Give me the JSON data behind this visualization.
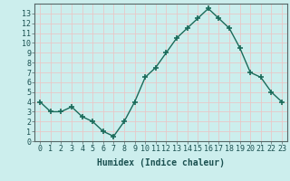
{
  "x": [
    0,
    1,
    2,
    3,
    4,
    5,
    6,
    7,
    8,
    9,
    10,
    11,
    12,
    13,
    14,
    15,
    16,
    17,
    18,
    19,
    20,
    21,
    22,
    23
  ],
  "y": [
    4.0,
    3.0,
    3.0,
    3.5,
    2.5,
    2.0,
    1.0,
    0.5,
    2.0,
    4.0,
    6.5,
    7.5,
    9.0,
    10.5,
    11.5,
    12.5,
    13.5,
    12.5,
    11.5,
    9.5,
    7.0,
    6.5,
    5.0,
    4.0
  ],
  "line_color": "#1a6b5a",
  "marker": "+",
  "marker_size": 4,
  "marker_edge_width": 1.2,
  "bg_color": "#cceeed",
  "grid_color": "#e8c8c8",
  "outer_bg": "#cceeed",
  "xlabel": "Humidex (Indice chaleur)",
  "xlabel_fontsize": 7,
  "xlim": [
    -0.5,
    23.5
  ],
  "ylim": [
    0,
    14
  ],
  "yticks": [
    0,
    1,
    2,
    3,
    4,
    5,
    6,
    7,
    8,
    9,
    10,
    11,
    12,
    13
  ],
  "xticks": [
    0,
    1,
    2,
    3,
    4,
    5,
    6,
    7,
    8,
    9,
    10,
    11,
    12,
    13,
    14,
    15,
    16,
    17,
    18,
    19,
    20,
    21,
    22,
    23
  ],
  "tick_fontsize": 6,
  "line_width": 1.0
}
